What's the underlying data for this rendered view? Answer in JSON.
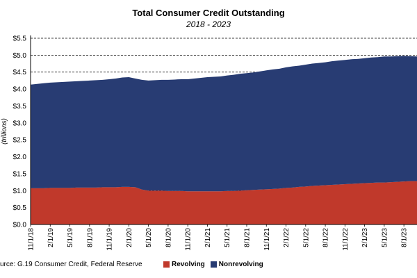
{
  "chart_data": {
    "type": "area",
    "stacked": true,
    "title": "Total Consumer Credit Outstanding",
    "subtitle": "2018 - 2023",
    "ylabel": "(trillions)",
    "ylim": [
      0,
      5.5
    ],
    "ytick_step": 0.5,
    "yticks": [
      "$0.0",
      "$0.5",
      "$1.0",
      "$1.5",
      "$2.0",
      "$2.5",
      "$3.0",
      "$3.5",
      "$4.0",
      "$4.5",
      "$5.0",
      "$5.5"
    ],
    "x": [
      "11/1/18",
      "12/1/18",
      "1/1/19",
      "2/1/19",
      "3/1/19",
      "4/1/19",
      "5/1/19",
      "6/1/19",
      "7/1/19",
      "8/1/19",
      "9/1/19",
      "10/1/19",
      "11/1/19",
      "12/1/19",
      "1/1/20",
      "2/1/20",
      "3/1/20",
      "4/1/20",
      "5/1/20",
      "6/1/20",
      "7/1/20",
      "8/1/20",
      "9/1/20",
      "10/1/20",
      "11/1/20",
      "12/1/20",
      "1/1/21",
      "2/1/21",
      "3/1/21",
      "4/1/21",
      "5/1/21",
      "6/1/21",
      "7/1/21",
      "8/1/21",
      "9/1/21",
      "10/1/21",
      "11/1/21",
      "12/1/21",
      "1/1/22",
      "2/1/22",
      "3/1/22",
      "4/1/22",
      "5/1/22",
      "6/1/22",
      "7/1/22",
      "8/1/22",
      "9/1/22",
      "10/1/22",
      "11/1/22",
      "12/1/22",
      "1/1/23",
      "2/1/23",
      "3/1/23",
      "4/1/23",
      "5/1/23",
      "6/1/23",
      "7/1/23",
      "8/1/23",
      "9/1/23",
      "10/1/23"
    ],
    "xtick_labels": [
      "11/1/18",
      "2/1/19",
      "5/1/19",
      "8/1/19",
      "11/1/19",
      "2/1/20",
      "5/1/20",
      "8/1/20",
      "11/1/20",
      "2/1/21",
      "5/1/21",
      "8/1/21",
      "11/1/21",
      "2/1/22",
      "5/1/22",
      "8/1/22",
      "11/1/22",
      "2/1/23",
      "5/1/23",
      "8/1/23"
    ],
    "series": [
      {
        "name": "Revolving",
        "color": "#c0392b",
        "values": [
          1.07,
          1.07,
          1.07,
          1.08,
          1.08,
          1.08,
          1.08,
          1.09,
          1.09,
          1.09,
          1.09,
          1.1,
          1.1,
          1.1,
          1.11,
          1.11,
          1.1,
          1.03,
          1.0,
          1.0,
          1.0,
          0.99,
          0.99,
          0.99,
          0.98,
          0.98,
          0.98,
          0.98,
          0.98,
          0.98,
          0.99,
          0.99,
          1.0,
          1.01,
          1.02,
          1.03,
          1.04,
          1.05,
          1.06,
          1.08,
          1.09,
          1.11,
          1.12,
          1.14,
          1.15,
          1.16,
          1.17,
          1.18,
          1.19,
          1.2,
          1.21,
          1.22,
          1.23,
          1.24,
          1.24,
          1.25,
          1.26,
          1.27,
          1.28,
          1.28
        ]
      },
      {
        "name": "Nonrevolving",
        "color": "#283c73",
        "values": [
          3.06,
          3.08,
          3.1,
          3.11,
          3.12,
          3.13,
          3.14,
          3.14,
          3.15,
          3.16,
          3.17,
          3.17,
          3.19,
          3.21,
          3.23,
          3.24,
          3.21,
          3.24,
          3.25,
          3.26,
          3.27,
          3.28,
          3.29,
          3.3,
          3.31,
          3.33,
          3.35,
          3.37,
          3.38,
          3.39,
          3.41,
          3.43,
          3.45,
          3.46,
          3.47,
          3.49,
          3.51,
          3.53,
          3.54,
          3.56,
          3.58,
          3.58,
          3.6,
          3.61,
          3.62,
          3.63,
          3.65,
          3.66,
          3.67,
          3.68,
          3.68,
          3.69,
          3.7,
          3.7,
          3.72,
          3.71,
          3.71,
          3.71,
          3.69,
          3.68
        ]
      }
    ],
    "grid": {
      "horizontal": true,
      "style": "dashed"
    },
    "legend_position": "bottom"
  },
  "source": "urce: G.19 Consumer Credit, Federal Reserve",
  "legend": [
    {
      "label": "Revolving",
      "color": "#c0392b"
    },
    {
      "label": "Nonrevolving",
      "color": "#283c73"
    }
  ]
}
